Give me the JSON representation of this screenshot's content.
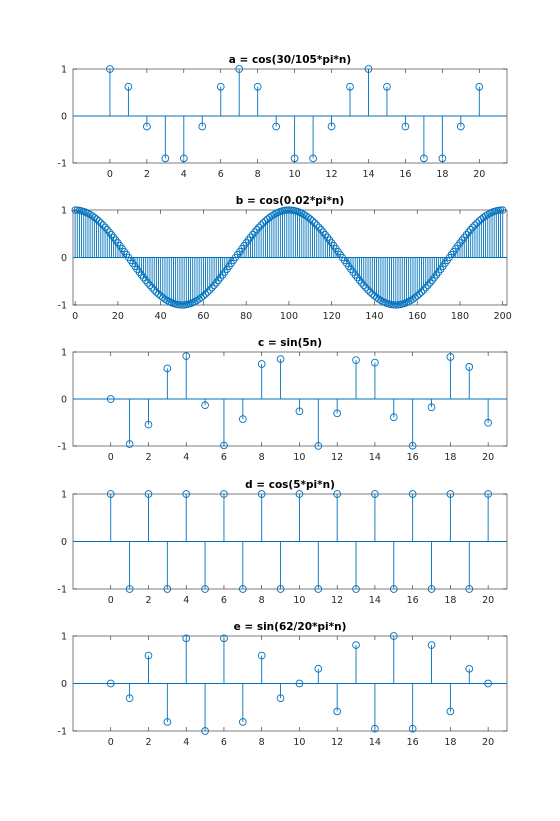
{
  "series_color": "#0072BD",
  "chart_data": [
    {
      "type": "stem",
      "title": "a = cos(30/105*pi*n)",
      "xlabel": "",
      "ylabel": "",
      "xlim": [
        -2,
        21.5
      ],
      "ylim": [
        -1,
        1
      ],
      "xticks": [
        0,
        2,
        4,
        6,
        8,
        10,
        12,
        14,
        16,
        18,
        20
      ],
      "yticks": [
        -1,
        0,
        1
      ],
      "grid": false,
      "x": [
        0,
        1,
        2,
        3,
        4,
        5,
        6,
        7,
        8,
        9,
        10,
        11,
        12,
        13,
        14,
        15,
        16,
        17,
        18,
        19,
        20
      ],
      "y": [
        1,
        0.623,
        -0.223,
        -0.901,
        -0.901,
        -0.223,
        0.623,
        1,
        0.623,
        -0.223,
        -0.901,
        -0.901,
        -0.223,
        0.623,
        1,
        0.623,
        -0.223,
        -0.901,
        -0.901,
        -0.223,
        0.623
      ]
    },
    {
      "type": "stem",
      "title": "b = cos(0.02*pi*n)",
      "xlabel": "",
      "ylabel": "",
      "xlim": [
        -1,
        202
      ],
      "ylim": [
        -1,
        1
      ],
      "xticks": [
        0,
        20,
        40,
        60,
        80,
        100,
        120,
        140,
        160,
        180,
        200
      ],
      "yticks": [
        -1,
        0,
        1
      ],
      "grid": false,
      "x_range": [
        0,
        200,
        1
      ],
      "formula": "cos(0.02*pi*n)"
    },
    {
      "type": "stem",
      "title": "c = sin(5n)",
      "xlabel": "",
      "ylabel": "",
      "xlim": [
        -2,
        21
      ],
      "ylim": [
        -1,
        1
      ],
      "xticks": [
        0,
        2,
        4,
        6,
        8,
        10,
        12,
        14,
        16,
        18,
        20
      ],
      "yticks": [
        -1,
        0,
        1
      ],
      "grid": false,
      "x": [
        0,
        1,
        2,
        3,
        4,
        5,
        6,
        7,
        8,
        9,
        10,
        11,
        12,
        13,
        14,
        15,
        16,
        17,
        18,
        19,
        20
      ],
      "y": [
        0,
        -0.959,
        -0.544,
        0.65,
        0.913,
        -0.132,
        -0.988,
        -0.428,
        0.745,
        0.85,
        -0.262,
        -0.999,
        -0.305,
        0.827,
        0.774,
        -0.388,
        -0.994,
        -0.176,
        0.894,
        0.683,
        -0.506
      ]
    },
    {
      "type": "stem",
      "title": "d = cos(5*pi*n)",
      "xlabel": "",
      "ylabel": "",
      "xlim": [
        -2,
        21
      ],
      "ylim": [
        -1,
        1
      ],
      "xticks": [
        0,
        2,
        4,
        6,
        8,
        10,
        12,
        14,
        16,
        18,
        20
      ],
      "yticks": [
        -1,
        0,
        1
      ],
      "grid": false,
      "x": [
        0,
        1,
        2,
        3,
        4,
        5,
        6,
        7,
        8,
        9,
        10,
        11,
        12,
        13,
        14,
        15,
        16,
        17,
        18,
        19,
        20
      ],
      "y": [
        1,
        -1,
        1,
        -1,
        1,
        -1,
        1,
        -1,
        1,
        -1,
        1,
        -1,
        1,
        -1,
        1,
        -1,
        1,
        -1,
        1,
        -1,
        1
      ]
    },
    {
      "type": "stem",
      "title": "e = sin(62/20*pi*n)",
      "xlabel": "",
      "ylabel": "",
      "xlim": [
        -2,
        21
      ],
      "ylim": [
        -1,
        1
      ],
      "xticks": [
        0,
        2,
        4,
        6,
        8,
        10,
        12,
        14,
        16,
        18,
        20
      ],
      "yticks": [
        -1,
        0,
        1
      ],
      "grid": false,
      "x": [
        0,
        1,
        2,
        3,
        4,
        5,
        6,
        7,
        8,
        9,
        10,
        11,
        12,
        13,
        14,
        15,
        16,
        17,
        18,
        19,
        20
      ],
      "y": [
        0,
        -0.309,
        0.588,
        -0.809,
        0.951,
        -1,
        0.951,
        -0.809,
        0.588,
        -0.309,
        0,
        0.309,
        -0.588,
        0.809,
        -0.951,
        1,
        -0.951,
        0.809,
        -0.588,
        0.309,
        0
      ]
    }
  ]
}
